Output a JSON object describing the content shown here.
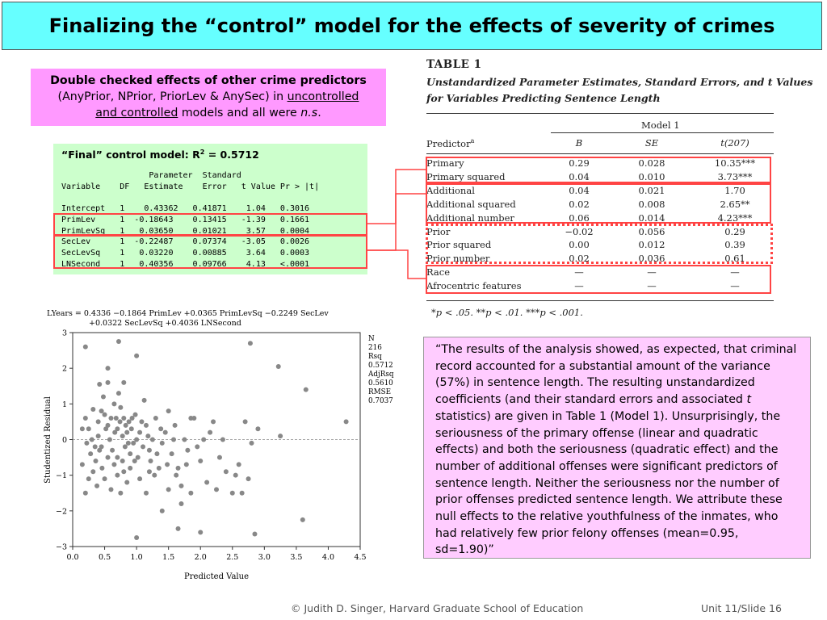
{
  "slide": {
    "title": "Finalizing the “control” model for the effects of severity of crimes",
    "footer_copyright": "© Judith D. Singer, Harvard Graduate School of Education",
    "footer_unit": "Unit 11/Slide 16"
  },
  "note": {
    "bold_line": "Double checked effects of other crime predictors",
    "line2_pre": "(AnyPrior, NPrior, PriorLev & AnySec) in ",
    "uncontrolled": "uncontrolled",
    "and_controlled": "and controlled",
    "line3_mid": " models and all were ",
    "ns": "n.s",
    "period": "."
  },
  "final_model": {
    "header_pre": "“Final” control model: R",
    "header_sup": "2",
    "header_post": " =  0.5712",
    "col_head_1": "                  Parameter  Standard",
    "col_head_2": "Variable    DF   Estimate    Error   t Value Pr > |t|",
    "rows": [
      "Intercept   1    0.43362   0.41871    1.04   0.3016",
      "PrimLev     1  -0.18643    0.13415   -1.39   0.1661",
      "PrimLevSq   1   0.03650    0.01021    3.57   0.0004",
      "SecLev      1  -0.22487    0.07374   -3.05   0.0026",
      "SecLevSq    1   0.03220    0.00885    3.64   0.0003",
      "LNSecond    1   0.40356    0.09766    4.13   <.0001"
    ]
  },
  "table1": {
    "label": "TABLE 1",
    "caption_1": "Unstandardized Parameter Estimates, Standard Errors, and t Values",
    "caption_2": "for Variables Predicting Sentence Length",
    "model_label": "Model 1",
    "predictor_head": "Predictor",
    "predictor_sup": "a",
    "col_b": "B",
    "col_se": "SE",
    "col_t": "t(207)",
    "rows": [
      {
        "name": "Primary",
        "b": "0.29",
        "se": "0.028",
        "t": "10.35***"
      },
      {
        "name": "Primary squared",
        "b": "0.04",
        "se": "0.010",
        "t": "3.73***"
      },
      {
        "name": "Additional",
        "b": "0.04",
        "se": "0.021",
        "t": "1.70"
      },
      {
        "name": "Additional squared",
        "b": "0.02",
        "se": "0.008",
        "t": "2.65**"
      },
      {
        "name": "Additional number",
        "b": "0.06",
        "se": "0.014",
        "t": "4.23***"
      },
      {
        "name": "Prior",
        "b": "−0.02",
        "se": "0.056",
        "t": "0.29"
      },
      {
        "name": "Prior squared",
        "b": "0.00",
        "se": "0.012",
        "t": "0.39"
      },
      {
        "name": "Prior number",
        "b": "0.02",
        "se": "0.036",
        "t": "0.61"
      },
      {
        "name": "Race",
        "b": "—",
        "se": "—",
        "t": "—"
      },
      {
        "name": "Afrocentric features",
        "b": "—",
        "se": "—",
        "t": "—"
      }
    ],
    "footnote": "*p < .05. **p < .01. ***p < .001."
  },
  "quote": {
    "p1": "“The results of the analysis showed, as expected, that criminal record accounted for a substantial amount of the variance (57%) in sentence length.  The resulting unstandardized coefficients (and their standard errors and associated ",
    "t_italic": "t",
    "p2": " statistics) are given in Table 1 (Model 1).  Unsurprisingly, the seriousness of the primary offense (linear and quadratic effects) and both the seriousness (quadratic effect) and the number of additional offenses were significant predictors of sentence length.  Neither the seriousness nor the number of prior offenses predicted sentence length.  We attribute these null effects to the relative youthfulness of the inmates, who had relatively few prior felony offenses (mean=0.95, sd=1.90)”"
  },
  "plot": {
    "equation_1": "LYears = 0.4336 −0.1864 PrimLev +0.0365 PrimLevSq −0.2249 SecLev",
    "equation_2": "+0.0322 SecLevSq +0.4036 LNSecond",
    "stats": [
      "N",
      "216",
      "Rsq",
      "0.5712",
      "AdjRsq",
      "0.5610",
      "RMSE",
      "0.7037"
    ]
  },
  "chart_data": {
    "type": "scatter",
    "xlabel": "Predicted Value",
    "ylabel": "Studentized Residual",
    "xlim": [
      0.0,
      4.5
    ],
    "ylim": [
      -3,
      3
    ],
    "xticks": [
      "0.0",
      "0.5",
      "1.0",
      "1.5",
      "2.0",
      "2.5",
      "3.0",
      "3.5",
      "4.0",
      "4.5"
    ],
    "yticks": [
      "3",
      "2",
      "1",
      "0",
      "−1",
      "−2",
      "−3"
    ],
    "reference_line_y": 0,
    "points": [
      [
        0.2,
        2.6
      ],
      [
        0.72,
        2.75
      ],
      [
        1.0,
        2.35
      ],
      [
        2.78,
        2.7
      ],
      [
        3.22,
        2.05
      ],
      [
        0.55,
        2.0
      ],
      [
        0.42,
        1.55
      ],
      [
        0.55,
        1.6
      ],
      [
        0.8,
        1.6
      ],
      [
        0.32,
        0.85
      ],
      [
        0.15,
        0.3
      ],
      [
        0.2,
        0.6
      ],
      [
        0.25,
        0.3
      ],
      [
        0.3,
        0.0
      ],
      [
        0.35,
        -0.2
      ],
      [
        0.4,
        0.5
      ],
      [
        0.45,
        0.8
      ],
      [
        0.48,
        1.2
      ],
      [
        0.5,
        0.7
      ],
      [
        0.55,
        0.4
      ],
      [
        0.6,
        0.6
      ],
      [
        0.65,
        1.0
      ],
      [
        0.68,
        0.6
      ],
      [
        0.7,
        0.3
      ],
      [
        0.72,
        1.3
      ],
      [
        0.75,
        0.9
      ],
      [
        0.78,
        0.1
      ],
      [
        0.8,
        0.6
      ],
      [
        0.82,
        -0.2
      ],
      [
        0.85,
        0.2
      ],
      [
        0.88,
        0.5
      ],
      [
        0.9,
        -0.4
      ],
      [
        0.92,
        0.3
      ],
      [
        0.95,
        -0.1
      ],
      [
        0.98,
        0.7
      ],
      [
        1.0,
        0.0
      ],
      [
        1.02,
        -0.5
      ],
      [
        1.05,
        0.2
      ],
      [
        1.1,
        -0.2
      ],
      [
        1.12,
        1.1
      ],
      [
        1.15,
        0.4
      ],
      [
        1.2,
        -0.3
      ],
      [
        1.25,
        0.0
      ],
      [
        1.3,
        0.6
      ],
      [
        1.35,
        -0.8
      ],
      [
        1.4,
        -0.1
      ],
      [
        1.45,
        0.2
      ],
      [
        1.5,
        0.8
      ],
      [
        1.55,
        -0.4
      ],
      [
        1.6,
        0.4
      ],
      [
        1.65,
        -0.8
      ],
      [
        1.7,
        -1.3
      ],
      [
        1.75,
        0.0
      ],
      [
        1.8,
        -0.3
      ],
      [
        1.85,
        0.6
      ],
      [
        1.9,
        0.6
      ],
      [
        2.0,
        -0.6
      ],
      [
        2.05,
        0.0
      ],
      [
        2.1,
        -1.2
      ],
      [
        2.2,
        0.5
      ],
      [
        2.25,
        -1.4
      ],
      [
        2.3,
        -0.5
      ],
      [
        2.4,
        -0.9
      ],
      [
        2.5,
        -1.5
      ],
      [
        2.6,
        -0.7
      ],
      [
        2.7,
        0.5
      ],
      [
        2.75,
        -1.1
      ],
      [
        2.8,
        -0.1
      ],
      [
        2.9,
        0.3
      ],
      [
        0.15,
        -0.7
      ],
      [
        0.2,
        -1.5
      ],
      [
        0.25,
        -1.1
      ],
      [
        0.28,
        -0.4
      ],
      [
        0.32,
        -0.9
      ],
      [
        0.36,
        -0.6
      ],
      [
        0.38,
        -1.3
      ],
      [
        0.42,
        -0.3
      ],
      [
        0.46,
        -0.8
      ],
      [
        0.5,
        -1.1
      ],
      [
        0.55,
        -0.5
      ],
      [
        0.6,
        -1.4
      ],
      [
        0.65,
        -0.7
      ],
      [
        0.7,
        -1.0
      ],
      [
        0.75,
        -1.5
      ],
      [
        0.8,
        -0.9
      ],
      [
        0.85,
        -1.2
      ],
      [
        0.9,
        -0.8
      ],
      [
        1.0,
        -2.75
      ],
      [
        1.05,
        -1.1
      ],
      [
        1.15,
        -1.5
      ],
      [
        1.2,
        -0.9
      ],
      [
        1.28,
        -1.0
      ],
      [
        1.4,
        -2.0
      ],
      [
        1.5,
        -1.4
      ],
      [
        1.65,
        -2.5
      ],
      [
        1.7,
        -1.8
      ],
      [
        1.85,
        -1.5
      ],
      [
        2.0,
        -2.6
      ],
      [
        2.65,
        -1.5
      ],
      [
        2.85,
        -2.65
      ],
      [
        3.6,
        -2.25
      ],
      [
        3.65,
        1.4
      ],
      [
        4.28,
        0.5
      ],
      [
        0.22,
        -0.1
      ],
      [
        0.4,
        0.1
      ],
      [
        0.45,
        -0.2
      ],
      [
        0.52,
        0.3
      ],
      [
        0.58,
        0.0
      ],
      [
        0.62,
        -0.3
      ],
      [
        0.66,
        0.2
      ],
      [
        0.7,
        -0.5
      ],
      [
        0.74,
        0.5
      ],
      [
        0.78,
        -0.6
      ],
      [
        0.83,
        0.4
      ],
      [
        0.87,
        -0.1
      ],
      [
        0.93,
        0.6
      ],
      [
        0.97,
        -0.6
      ],
      [
        1.08,
        0.5
      ],
      [
        1.18,
        0.1
      ],
      [
        1.22,
        -0.6
      ],
      [
        1.32,
        -0.4
      ],
      [
        1.38,
        0.3
      ],
      [
        1.48,
        -0.7
      ],
      [
        1.58,
        0.0
      ],
      [
        1.62,
        -1.0
      ],
      [
        1.78,
        -0.7
      ],
      [
        1.95,
        -0.2
      ],
      [
        2.15,
        0.2
      ],
      [
        2.35,
        0.0
      ],
      [
        2.55,
        -1.0
      ],
      [
        3.25,
        0.1
      ]
    ]
  }
}
